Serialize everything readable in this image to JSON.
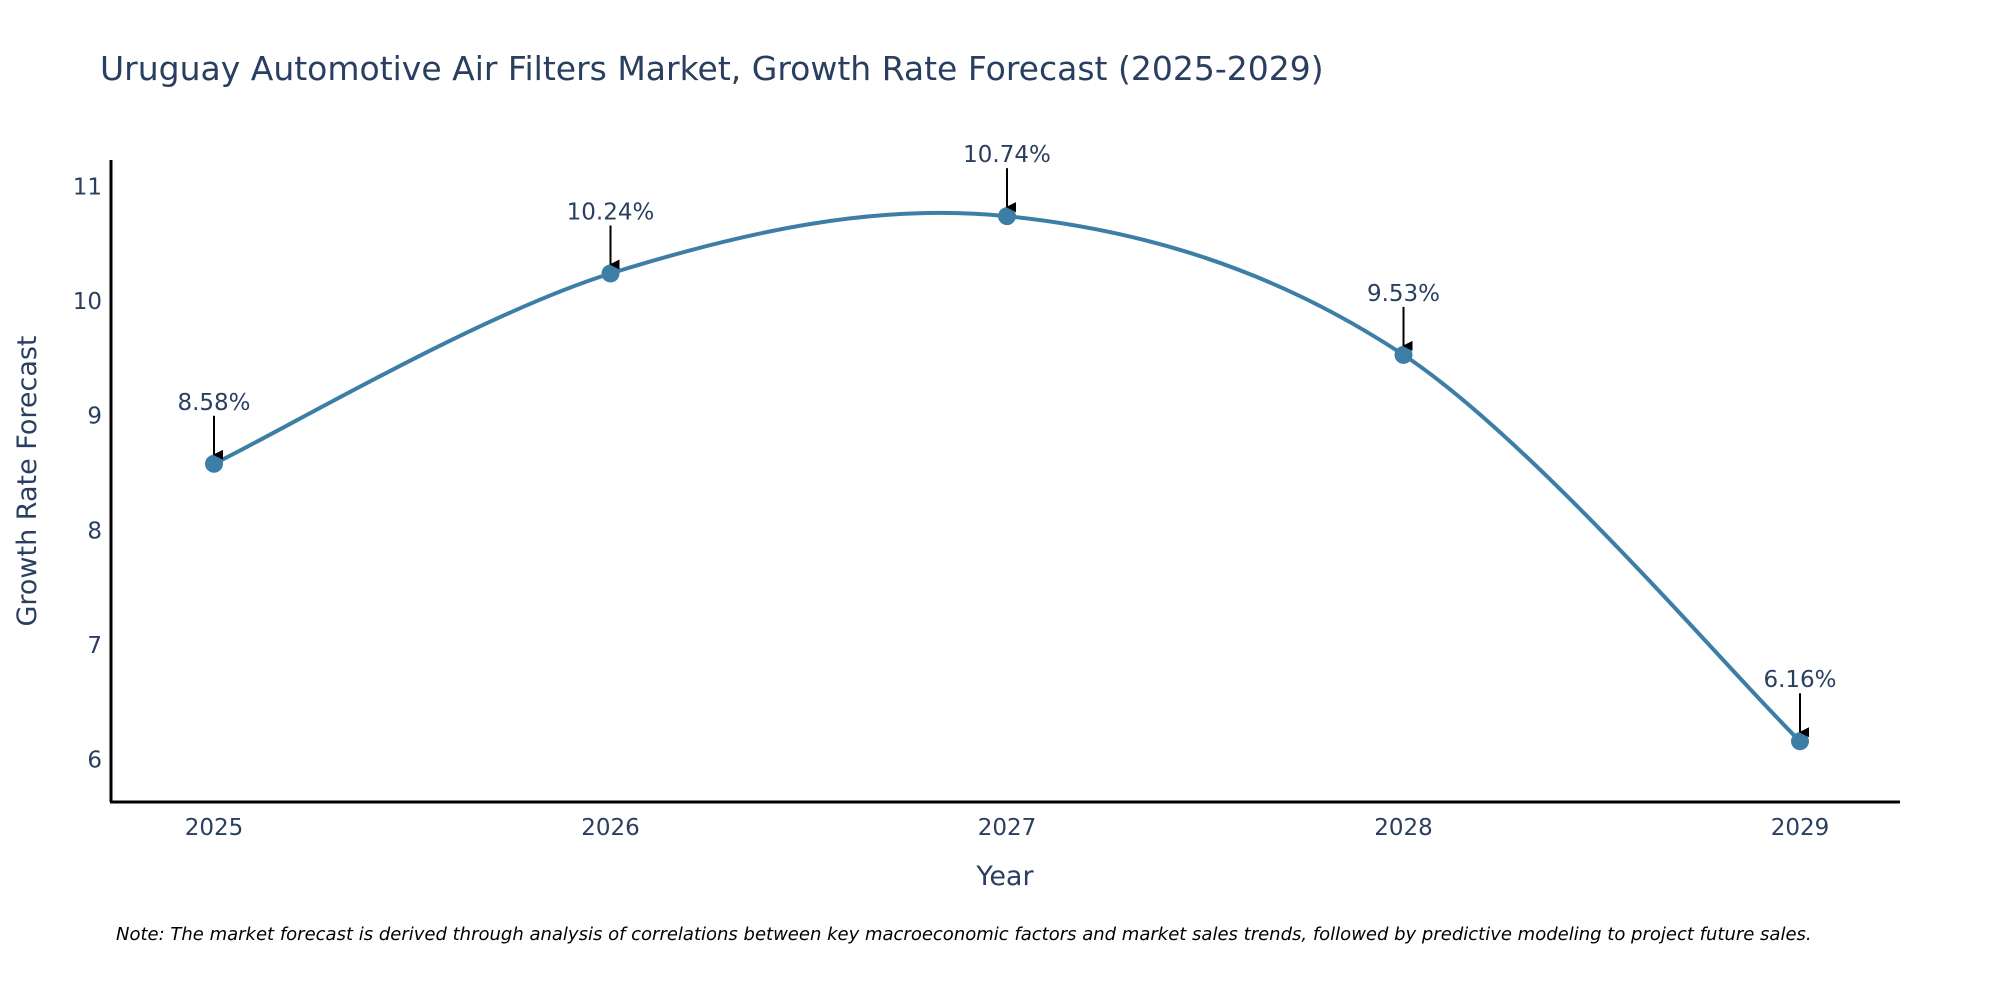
{
  "chart_data": {
    "type": "line",
    "title": "Uruguay Automotive Air Filters Market, Growth Rate Forecast (2025-2029)",
    "xlabel": "Year",
    "ylabel": "Growth Rate Forecast",
    "categories": [
      "2025",
      "2026",
      "2027",
      "2028",
      "2029"
    ],
    "values": [
      8.58,
      10.24,
      10.74,
      9.53,
      6.16
    ],
    "data_labels": [
      "8.58%",
      "10.24%",
      "10.74%",
      "9.53%",
      "6.16%"
    ],
    "yticks": [
      6,
      7,
      8,
      9,
      10,
      11
    ],
    "ylim": [
      5.63,
      11.23
    ],
    "grid": false,
    "line_shape": "spline",
    "line_color": "#3d7ea6",
    "marker_color": "#3d7ea6",
    "annotation_arrow_color": "#000000"
  },
  "note": "Note: The market forecast is derived through analysis of correlations between key macroeconomic factors and market sales trends, followed by predictive modeling to project future sales."
}
